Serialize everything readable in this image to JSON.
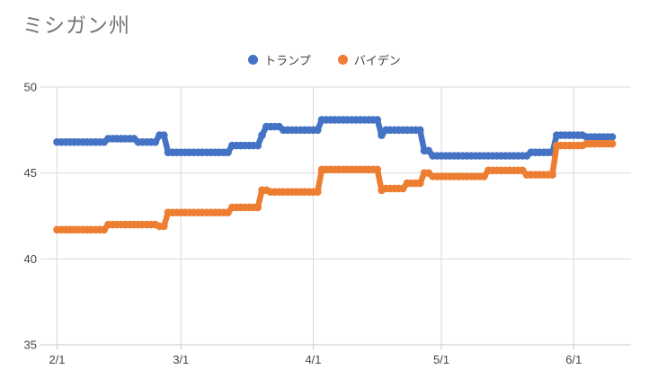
{
  "chart_data": {
    "type": "line",
    "title": "ミシガン州",
    "legend_position": "top-center",
    "ylabel": "",
    "xlabel": "",
    "ylim": [
      35,
      50
    ],
    "yticks": [
      50,
      45,
      40,
      35
    ],
    "xticks": [
      "2/1",
      "3/1",
      "4/1",
      "5/1",
      "6/1"
    ],
    "x_start": "2/1",
    "x_end": "6/10",
    "grid": true,
    "grid_color": "#d9d9d9",
    "axis_color": "#c9c9c9",
    "series": [
      {
        "name": "トランプ",
        "color": "#4472C4",
        "segments": [
          [
            "2/1",
            "2/12",
            46.8
          ],
          [
            "2/13",
            "2/19",
            47.0
          ],
          [
            "2/20",
            "2/24",
            46.8
          ],
          [
            "2/25",
            "2/26",
            47.2
          ],
          [
            "2/27",
            "3/12",
            46.2
          ],
          [
            "3/13",
            "3/19",
            46.6
          ],
          [
            "3/20",
            "3/20",
            47.2
          ],
          [
            "3/21",
            "3/24",
            47.7
          ],
          [
            "3/25",
            "4/2",
            47.5
          ],
          [
            "4/3",
            "4/16",
            48.1
          ],
          [
            "4/17",
            "4/17",
            47.2
          ],
          [
            "4/18",
            "4/26",
            47.5
          ],
          [
            "4/27",
            "4/28",
            46.3
          ],
          [
            "4/29",
            "5/21",
            46.0
          ],
          [
            "5/22",
            "5/27",
            46.2
          ],
          [
            "5/28",
            "6/3",
            47.2
          ],
          [
            "6/4",
            "6/10",
            47.1
          ]
        ]
      },
      {
        "name": "バイデン",
        "color": "#ED7D31",
        "segments": [
          [
            "2/1",
            "2/12",
            41.7
          ],
          [
            "2/13",
            "2/24",
            42.0
          ],
          [
            "2/25",
            "2/26",
            41.9
          ],
          [
            "2/27",
            "3/12",
            42.7
          ],
          [
            "3/13",
            "3/19",
            43.0
          ],
          [
            "3/20",
            "3/21",
            44.0
          ],
          [
            "3/22",
            "4/2",
            43.9
          ],
          [
            "4/3",
            "4/16",
            45.2
          ],
          [
            "4/17",
            "4/17",
            44.0
          ],
          [
            "4/18",
            "4/22",
            44.1
          ],
          [
            "4/23",
            "4/26",
            44.4
          ],
          [
            "4/27",
            "4/28",
            45.0
          ],
          [
            "4/29",
            "5/11",
            44.8
          ],
          [
            "5/12",
            "5/20",
            45.15
          ],
          [
            "5/21",
            "5/27",
            44.9
          ],
          [
            "5/28",
            "6/3",
            46.6
          ],
          [
            "6/4",
            "6/10",
            46.7
          ]
        ]
      }
    ]
  }
}
